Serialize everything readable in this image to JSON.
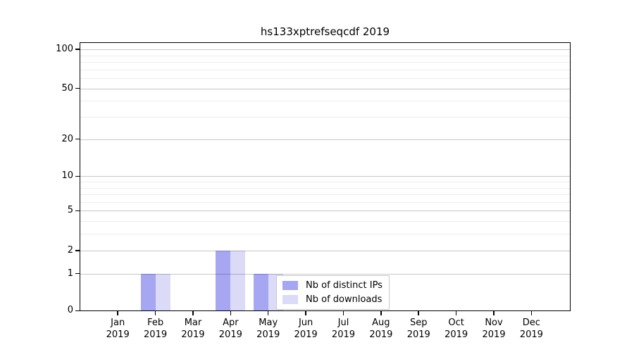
{
  "chart_data": {
    "type": "bar",
    "title": "hs133xptrefseqcdf 2019",
    "x_axis": {
      "months": [
        "Jan",
        "Feb",
        "Mar",
        "Apr",
        "May",
        "Jun",
        "Jul",
        "Aug",
        "Sep",
        "Oct",
        "Nov",
        "Dec"
      ],
      "year": "2019",
      "categories": [
        "Jan 2019",
        "Feb 2019",
        "Mar 2019",
        "Apr 2019",
        "May 2019",
        "Jun 2019",
        "Jul 2019",
        "Aug 2019",
        "Sep 2019",
        "Oct 2019",
        "Nov 2019",
        "Dec 2019"
      ]
    },
    "y_axis": {
      "scale": "log10(1+x)",
      "major_ticks": [
        0,
        1,
        2,
        5,
        10,
        20,
        50,
        100
      ],
      "major_tick_labels": [
        "0",
        "1",
        "2",
        "5",
        "10",
        "20",
        "50",
        "100"
      ],
      "minor_ticks": [
        3,
        4,
        6,
        7,
        8,
        9,
        30,
        40,
        60,
        70,
        80,
        90
      ],
      "range": [
        0,
        113
      ]
    },
    "series": [
      {
        "name": "Nb of distinct IPs",
        "color": "#a6a6f2",
        "values": [
          0,
          1,
          0,
          2,
          1,
          0,
          0,
          0,
          0,
          0,
          0,
          0
        ]
      },
      {
        "name": "Nb of downloads",
        "color": "#dbdbf8",
        "values": [
          0,
          1,
          0,
          2,
          1,
          0,
          0,
          0,
          0,
          0,
          0,
          0
        ]
      }
    ],
    "grid": {
      "horizontal_only": true,
      "major_color": "#c7c7c7",
      "minor_color": "#ededed"
    },
    "legend": {
      "position": "inside-bottom-center",
      "items": [
        "Nb of distinct IPs",
        "Nb of downloads"
      ]
    },
    "axis_color": "#000000",
    "background_color": "#ffffff"
  }
}
